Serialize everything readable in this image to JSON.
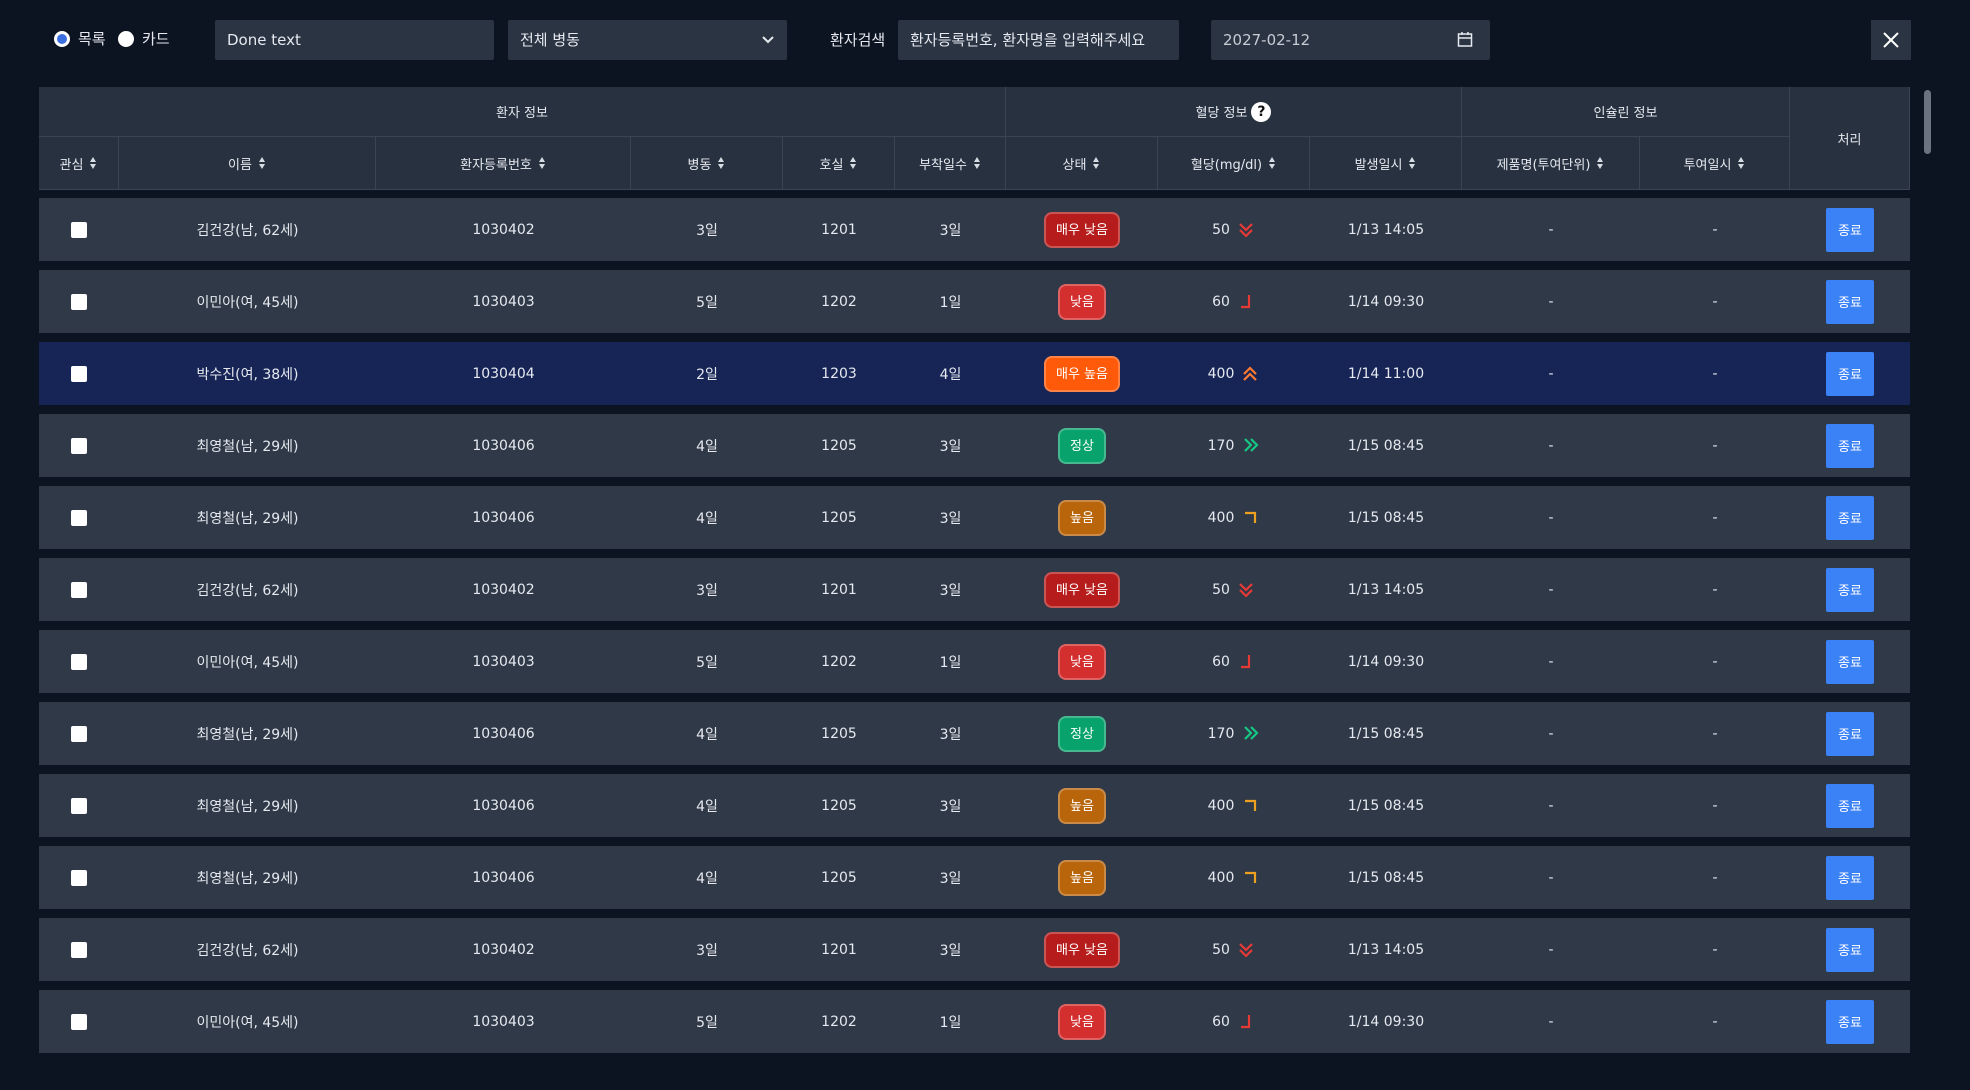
{
  "toolbar": {
    "view_list": "목록",
    "view_card": "카드",
    "text_input": "Done text",
    "ward_select": "전체 병동",
    "search_label": "환자검색",
    "search_placeholder": "환자등록번호, 환자명을 입력해주세요",
    "date": "2027-02-12"
  },
  "table": {
    "groups": {
      "patient": "환자 정보",
      "glucose": "혈당 정보",
      "help": "?",
      "insulin": "인슐린 정보",
      "action": "처리"
    },
    "columns": [
      "관심",
      "이름",
      "환자등록번호",
      "병동",
      "호실",
      "부착일수",
      "상태",
      "혈당(mg/dl)",
      "발생일시",
      "제품명(투여단위)",
      "투여일시"
    ],
    "rows": [
      {
        "name": "김건강(남, 62세)",
        "patient_id": "1030402",
        "ward": "3일",
        "room": "1201",
        "days": "3일",
        "status": "매우 낮음",
        "status_color": "#b71c1c",
        "glucose": 50,
        "time": "1/13 14:05",
        "product": "-",
        "given": "-",
        "action": "종료"
      },
      {
        "name": "이민아(여, 45세)",
        "patient_id": "1030403",
        "ward": "5일",
        "room": "1202",
        "days": "1일",
        "status": "낮음",
        "status_color": "#d32f2f",
        "glucose": 60,
        "time": "1/14 09:30",
        "product": "-",
        "given": "-",
        "action": "종료"
      },
      {
        "name": "박수진(여, 38세)",
        "patient_id": "1030404",
        "ward": "2일",
        "room": "1203",
        "days": "4일",
        "status": "매우 높음",
        "status_color": "#ff5a0a",
        "glucose": 400,
        "time": "1/14 11:00",
        "product": "-",
        "given": "-",
        "action": "종료"
      },
      {
        "name": "최영철(남, 29세)",
        "patient_id": "1030406",
        "ward": "4일",
        "room": "1205",
        "days": "3일",
        "status": "정상",
        "status_color": "#08a26c",
        "glucose": 170,
        "time": "1/15 08:45",
        "product": "-",
        "given": "-",
        "action": "종료"
      },
      {
        "name": "최영철(남, 29세)",
        "patient_id": "1030406",
        "ward": "4일",
        "room": "1205",
        "days": "3일",
        "status": "높음",
        "status_color": "#b8650b",
        "glucose": 400,
        "time": "1/15 08:45",
        "product": "-",
        "given": "-",
        "action": "종료"
      },
      {
        "name": "김건강(남, 62세)",
        "patient_id": "1030402",
        "ward": "3일",
        "room": "1201",
        "days": "3일",
        "status": "매우 낮음",
        "status_color": "#b71c1c",
        "glucose": 50,
        "time": "1/13 14:05",
        "product": "-",
        "given": "-",
        "action": "종료"
      },
      {
        "name": "이민아(여, 45세)",
        "patient_id": "1030403",
        "ward": "5일",
        "room": "1202",
        "days": "1일",
        "status": "낮음",
        "status_color": "#d32f2f",
        "glucose": 60,
        "time": "1/14 09:30",
        "product": "-",
        "given": "-",
        "action": "종료"
      },
      {
        "name": "최영철(남, 29세)",
        "patient_id": "1030406",
        "ward": "4일",
        "room": "1205",
        "days": "3일",
        "status": "정상",
        "status_color": "#08a26c",
        "glucose": 170,
        "time": "1/15 08:45",
        "product": "-",
        "given": "-",
        "action": "종료"
      },
      {
        "name": "최영철(남, 29세)",
        "patient_id": "1030406",
        "ward": "4일",
        "room": "1205",
        "days": "3일",
        "status": "높음",
        "status_color": "#b8650b",
        "glucose": 400,
        "time": "1/15 08:45",
        "product": "-",
        "given": "-",
        "action": "종료"
      },
      {
        "name": "최영철(남, 29세)",
        "patient_id": "1030406",
        "ward": "4일",
        "room": "1205",
        "days": "3일",
        "status": "높음",
        "status_color": "#b8650b",
        "glucose": 400,
        "time": "1/15 08:45",
        "product": "-",
        "given": "-",
        "action": "종료"
      },
      {
        "name": "김건강(남, 62세)",
        "patient_id": "1030402",
        "ward": "3일",
        "room": "1201",
        "days": "3일",
        "status": "매우 낮음",
        "status_color": "#b71c1c",
        "glucose": 50,
        "time": "1/13 14:05",
        "product": "-",
        "given": "-",
        "action": "종료"
      },
      {
        "name": "이민아(여, 45세)",
        "patient_id": "1030403",
        "ward": "5일",
        "room": "1202",
        "days": "1일",
        "status": "낮음",
        "status_color": "#d32f2f",
        "glucose": 60,
        "time": "1/14 09:30",
        "product": "-",
        "given": "-",
        "action": "종료"
      }
    ]
  }
}
